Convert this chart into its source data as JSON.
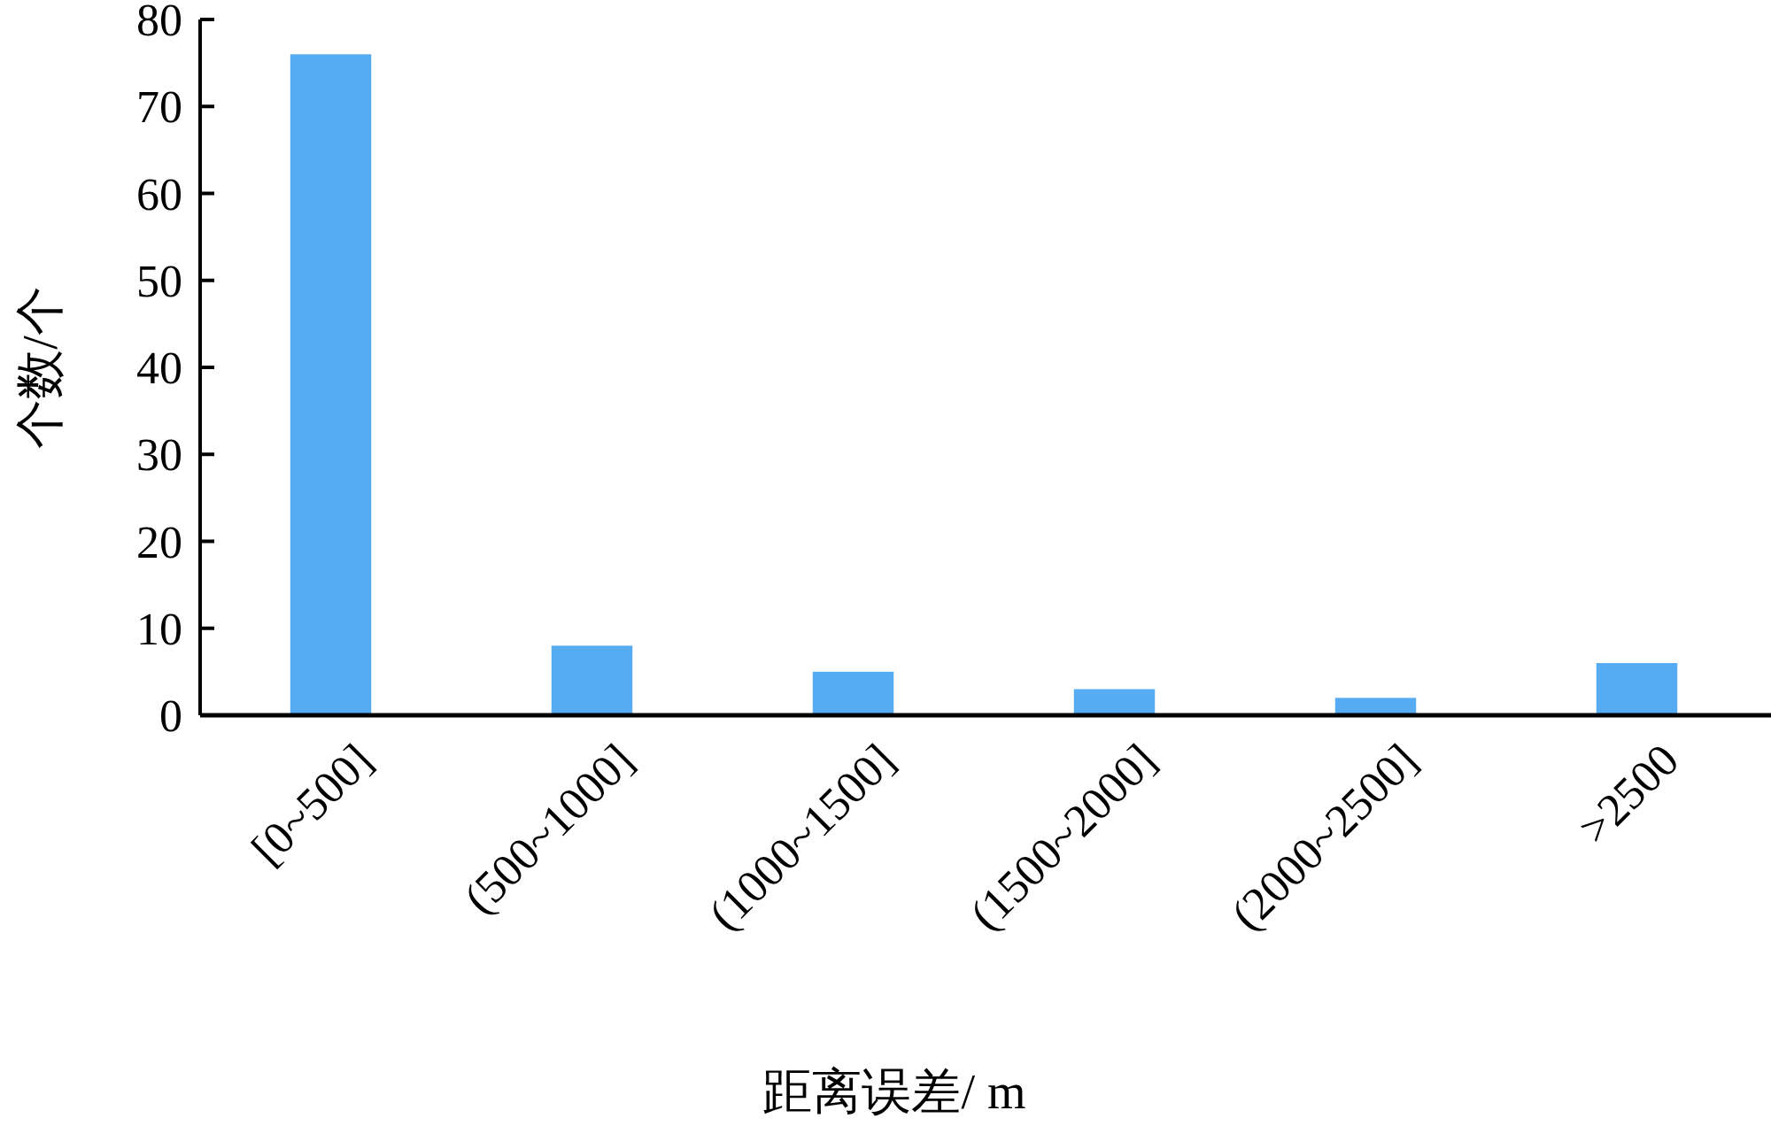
{
  "chart_data": {
    "type": "bar",
    "categories": [
      "[0~500]",
      "(500~1000]",
      "(1000~1500]",
      "(1500~2000]",
      "(2000~2500]",
      ">2500"
    ],
    "values": [
      76,
      8,
      5,
      3,
      2,
      6
    ],
    "color": "#56acf2",
    "xlabel": "距离误差/ m",
    "ylabel": "个数/个",
    "ylim": [
      0,
      80
    ],
    "yticks": [
      0,
      10,
      20,
      30,
      40,
      50,
      60,
      70,
      80
    ]
  }
}
